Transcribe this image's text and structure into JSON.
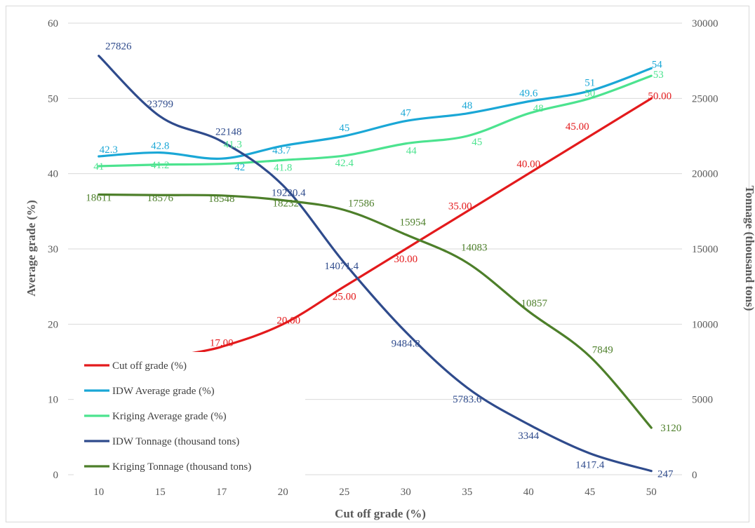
{
  "chart_data": {
    "type": "line",
    "categories": [
      "10",
      "15",
      "17",
      "20",
      "25",
      "30",
      "35",
      "40",
      "45",
      "50"
    ],
    "xlabel": "Cut off grade (%)",
    "ylabel": "Average grade (%)",
    "y2label": "Tonnage (thousand tons)",
    "ylim": [
      0,
      60
    ],
    "y2lim": [
      0,
      30000
    ],
    "yticks": [
      "0",
      "10",
      "20",
      "30",
      "40",
      "50",
      "60"
    ],
    "y2ticks": [
      "0",
      "5000",
      "10000",
      "15000",
      "20000",
      "25000",
      "30000"
    ],
    "grid": true,
    "legend_position": "bottom-left (inside)",
    "series": [
      {
        "name": "Cut off grade (%)",
        "axis": "left",
        "color": "#e31a1c",
        "values": [
          10,
          15,
          17,
          20,
          25,
          30,
          35,
          40,
          45,
          50
        ],
        "labels": [
          "",
          "",
          "17.00",
          "20.00",
          "25.00",
          "30.00",
          "35.00",
          "40.00",
          "45.00",
          "50.00"
        ]
      },
      {
        "name": "IDW Average grade (%)",
        "axis": "left",
        "color": "#1aa7d6",
        "values": [
          42.3,
          42.8,
          42,
          43.7,
          45,
          47,
          48,
          49.6,
          51,
          54
        ],
        "labels": [
          "42.3",
          "42.8",
          "",
          "43.7",
          "45",
          "47",
          "48",
          "49.6",
          "51",
          "54"
        ]
      },
      {
        "name": "Kriging Average grade (%)",
        "axis": "left",
        "color": "#4ce38f",
        "values": [
          41,
          41.2,
          41.3,
          41.8,
          42.4,
          44,
          45,
          48,
          50,
          53
        ],
        "labels": [
          "41",
          "41.2",
          "41.3",
          "41.8",
          "42.4",
          "44",
          "45",
          "48",
          "50",
          "53"
        ]
      },
      {
        "name": "IDW Tonnage (thousand tons)",
        "axis": "right",
        "color": "#2f4b8c",
        "values": [
          27826,
          23799,
          22148,
          19220.4,
          14071.4,
          9484.8,
          5783.6,
          3344,
          1417.4,
          247
        ],
        "labels": [
          "27826",
          "23799",
          "22148",
          "19220.4",
          "14071.4",
          "9484.8",
          "5783.6",
          "3344",
          "1417.4",
          "247"
        ]
      },
      {
        "name": "Kriging Tonnage (thousand tons)",
        "axis": "right",
        "color": "#4d7f2a",
        "values": [
          18611,
          18576,
          18548,
          18232,
          17586,
          15954,
          14083,
          10857,
          7849,
          3120
        ],
        "labels": [
          "18611",
          "18576",
          "18548",
          "18232",
          "17586",
          "15954",
          "14083",
          "10857",
          "7849",
          "3120"
        ]
      }
    ],
    "extra_labels": [
      {
        "text": "42",
        "color": "#1aa7d6"
      }
    ]
  }
}
